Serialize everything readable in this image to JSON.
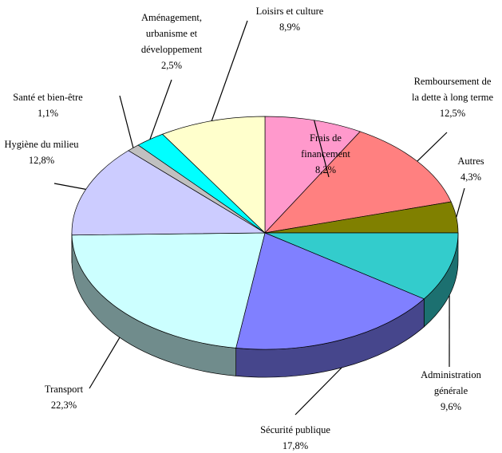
{
  "chart_data": {
    "type": "pie3d",
    "categories": [
      "Frais de\nfinancement",
      "Remboursement de\nla dette à long terme",
      "Autres",
      "Administration\ngénérale",
      "Sécurité publique",
      "Transport",
      "Hygiène du milieu",
      "Santé et bien-être",
      "Aménagement,\nurbanisme et\ndéveloppement",
      "Loisirs et culture"
    ],
    "values": [
      8.2,
      12.5,
      4.3,
      9.6,
      17.8,
      22.3,
      12.8,
      1.1,
      2.5,
      8.9
    ],
    "value_labels": [
      "8,2%",
      "12,5%",
      "4,3%",
      "9,6%",
      "17,8%",
      "22,3%",
      "12,8%",
      "1,1%",
      "2,5%",
      "8,9%"
    ],
    "colors": [
      "#ff99cc",
      "#ff8080",
      "#808000",
      "#33cccc",
      "#8080ff",
      "#ccffff",
      "#ccccff",
      "#c0c0c0",
      "#00ffff",
      "#ffffcc"
    ]
  }
}
